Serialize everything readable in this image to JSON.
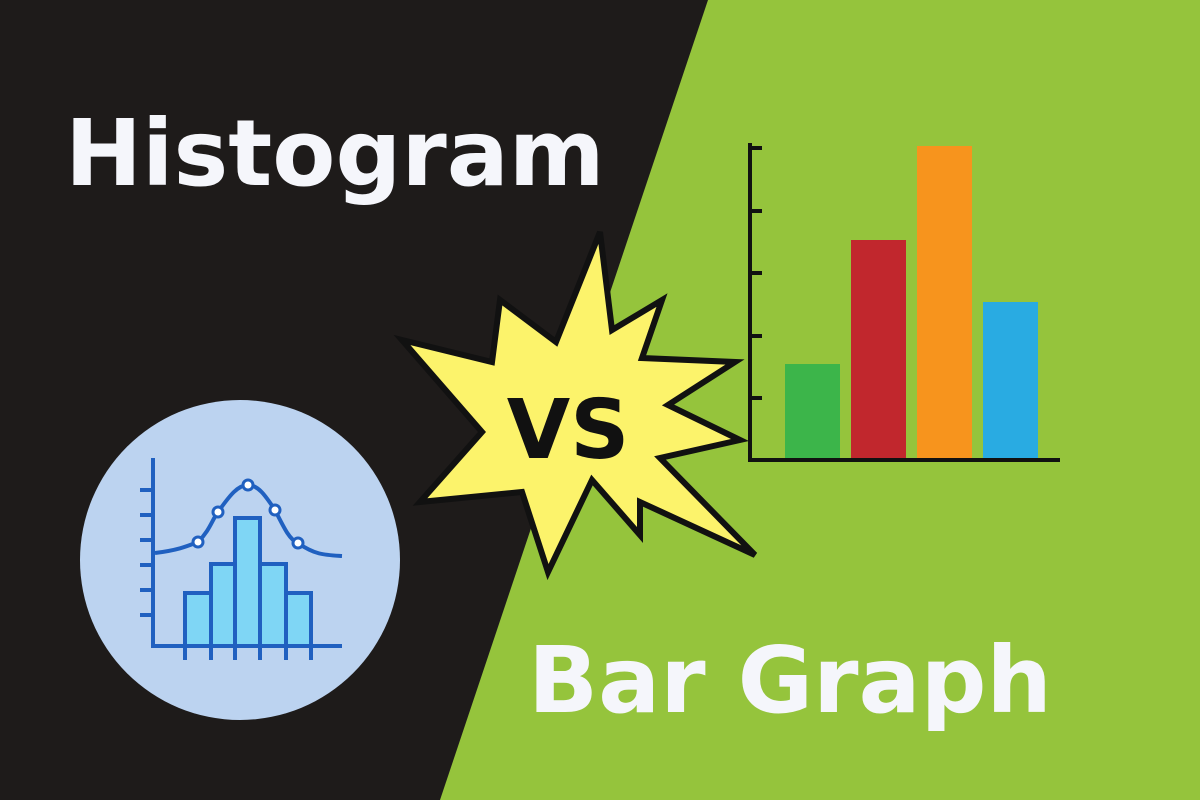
{
  "left_title": "Histogram",
  "badge": "VS",
  "right_title": "Bar Graph"
}
